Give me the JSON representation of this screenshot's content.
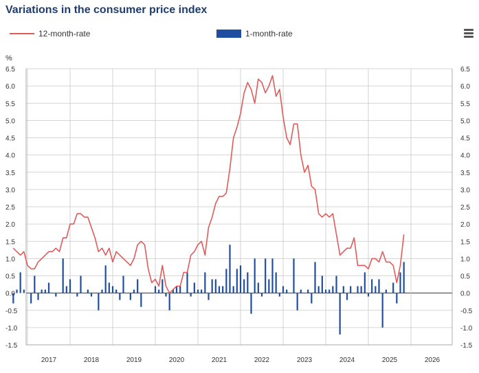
{
  "chart_data": {
    "type": "line+bar",
    "title": "Variations in the consumer price index",
    "ylabel": "%",
    "ylim": [
      -1.5,
      6.5
    ],
    "yticks": [
      "6.5",
      "6.0",
      "5.5",
      "5.0",
      "4.5",
      "4.0",
      "3.5",
      "3.0",
      "2.5",
      "2.0",
      "1.5",
      "1.0",
      "0.5",
      "0.0",
      "-0.5",
      "-1.0",
      "-1.5"
    ],
    "xlabels": [
      "2017",
      "2018",
      "2019",
      "2020",
      "2021",
      "2022",
      "2023",
      "2024",
      "2025",
      "2026"
    ],
    "x_start": "2016-09",
    "grid": true,
    "legend_position": "top",
    "series": [
      {
        "name": "12-month-rate",
        "type": "line",
        "color": "#e05a5a",
        "values": [
          1.3,
          1.2,
          1.1,
          1.2,
          0.8,
          0.7,
          0.7,
          0.9,
          1.0,
          1.1,
          1.2,
          1.2,
          1.3,
          1.2,
          1.6,
          1.6,
          2.0,
          2.0,
          2.3,
          2.3,
          2.2,
          2.2,
          1.9,
          1.6,
          1.2,
          1.3,
          1.1,
          1.3,
          0.9,
          1.2,
          1.1,
          1.0,
          0.9,
          0.8,
          1.0,
          1.4,
          1.5,
          1.4,
          0.7,
          0.3,
          0.4,
          0.2,
          0.8,
          0.2,
          0.0,
          0.1,
          0.2,
          0.2,
          0.6,
          0.6,
          1.1,
          1.2,
          1.4,
          1.5,
          1.1,
          1.9,
          2.2,
          2.6,
          2.8,
          2.8,
          2.9,
          3.6,
          4.5,
          4.8,
          5.2,
          5.8,
          6.1,
          5.9,
          5.5,
          6.2,
          6.1,
          5.8,
          6.0,
          6.3,
          5.7,
          5.9,
          5.1,
          4.5,
          4.3,
          4.9,
          4.9,
          4.0,
          3.5,
          3.7,
          3.1,
          3.0,
          2.3,
          2.2,
          2.3,
          2.2,
          2.3,
          1.7,
          1.1,
          1.2,
          1.3,
          1.3,
          1.6,
          0.8,
          0.8,
          0.8,
          0.7,
          1.0,
          1.0,
          0.9,
          1.2,
          0.9,
          0.9,
          0.8,
          0.3,
          0.8,
          1.7
        ]
      },
      {
        "name": "1-month-rate",
        "type": "bar",
        "color": "#1f4ea0",
        "values": [
          -0.3,
          0.1,
          0.6,
          0.1,
          0.0,
          -0.3,
          0.5,
          -0.2,
          0.1,
          0.1,
          0.3,
          0.0,
          -0.1,
          0.0,
          1.0,
          0.2,
          0.4,
          0.0,
          -0.1,
          0.5,
          0.0,
          0.1,
          -0.1,
          0.0,
          -0.5,
          0.1,
          0.8,
          0.3,
          0.2,
          0.1,
          -0.2,
          0.5,
          0.0,
          -0.2,
          0.1,
          0.4,
          -0.4,
          0.0,
          0.0,
          0.0,
          0.2,
          0.1,
          0.4,
          -0.1,
          -0.5,
          0.1,
          0.2,
          0.2,
          0.0,
          0.6,
          -0.1,
          0.3,
          0.1,
          0.1,
          0.6,
          -0.2,
          0.4,
          0.4,
          0.2,
          0.2,
          0.7,
          1.4,
          0.2,
          0.7,
          0.8,
          0.4,
          0.6,
          -0.6,
          1.0,
          0.3,
          -0.1,
          1.0,
          0.4,
          1.0,
          0.6,
          -0.1,
          0.2,
          0.1,
          0.0,
          1.0,
          -0.5,
          0.1,
          0.0,
          0.1,
          -0.3,
          0.9,
          0.2,
          0.5,
          0.1,
          0.1,
          0.2,
          0.5,
          -1.2,
          0.2,
          -0.2,
          0.2,
          0.0,
          0.2,
          0.2,
          0.6,
          -0.1,
          0.4,
          0.2,
          0.4,
          -1.0,
          0.1,
          0.0,
          0.3,
          -0.3,
          0.6,
          0.9
        ]
      }
    ]
  },
  "legend": {
    "line_label": "12-month-rate",
    "bar_label": "1-month-rate"
  },
  "icons": {
    "menu": "hamburger-menu-icon"
  }
}
